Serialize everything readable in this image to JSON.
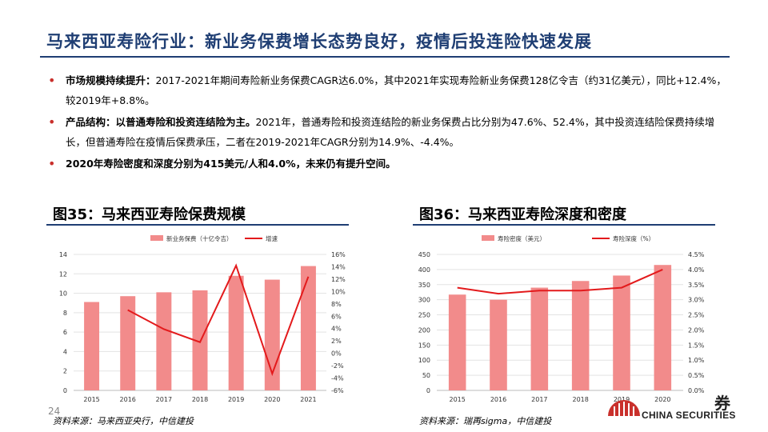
{
  "header": {
    "title": "马来西亚寿险行业：新业务保费增长态势良好，疫情后投连险快速发展"
  },
  "bullets": [
    {
      "bold": "市场规模持续提升：",
      "text": "2017-2021年期间寿险新业务保费CAGR达6.0%，其中2021年实现寿险新业务保费128亿令吉（约31亿美元），同比+12.4%，较2019年+8.8%。"
    },
    {
      "bold": "产品结构：以普通寿险和投资连结险为主。",
      "text": "2021年，普通寿险和投资连结险的新业务保费占比分别为47.6%、52.4%，其中投资连结险保费持续增长，但普通寿险在疫情后保费承压，二者在2019-2021年CAGR分别为14.9%、-4.4%。"
    },
    {
      "bold": "2020年寿险密度和深度分别为415美元/人和4.0%，未来仍有提升空间。",
      "text": ""
    }
  ],
  "figures": {
    "left": {
      "title": "图35：马来西亚寿险保费规模",
      "source": "资料来源：马来西亚央行，中信建投"
    },
    "right": {
      "title": "图36：马来西亚寿险深度和密度",
      "source": "资料来源：瑞再sigma，中信建投"
    }
  },
  "page_number": "24",
  "logo": {
    "text": "CHINA SECURITIES",
    "cn_fragment": "券"
  },
  "colors": {
    "bar": "#f28b8b",
    "line": "#e31a1c",
    "title": "#1f3e73",
    "bullet": "#c9302c"
  },
  "chart_data": [
    {
      "type": "bar",
      "categories": [
        "2015",
        "2016",
        "2017",
        "2018",
        "2019",
        "2020",
        "2021"
      ],
      "series": [
        {
          "name": "新业务保费（十亿令吉）",
          "type": "bar",
          "axis": "left",
          "values": [
            9.1,
            9.7,
            10.1,
            10.3,
            11.8,
            11.4,
            12.8
          ]
        },
        {
          "name": "增速",
          "type": "line",
          "axis": "right",
          "values": [
            null,
            7.0,
            3.9,
            1.8,
            14.2,
            -3.3,
            12.4
          ]
        }
      ],
      "ylim": [
        0,
        14
      ],
      "yticks": [
        0,
        2,
        4,
        6,
        8,
        10,
        12,
        14
      ],
      "y2lim": [
        -6,
        16
      ],
      "y2ticks": [
        "-6%",
        "-4%",
        "-2%",
        "0%",
        "2%",
        "4%",
        "6%",
        "8%",
        "10%",
        "12%",
        "14%",
        "16%"
      ],
      "legend": "top",
      "grid": true
    },
    {
      "type": "bar",
      "categories": [
        "2015",
        "2016",
        "2017",
        "2018",
        "2019",
        "2020"
      ],
      "series": [
        {
          "name": "寿险密度（美元）",
          "type": "bar",
          "axis": "left",
          "values": [
            317,
            300,
            340,
            362,
            380,
            415
          ]
        },
        {
          "name": "寿险深度（%）",
          "type": "line",
          "axis": "right",
          "values": [
            3.4,
            3.2,
            3.3,
            3.3,
            3.4,
            4.0
          ]
        }
      ],
      "ylim": [
        0,
        450
      ],
      "yticks": [
        0,
        50,
        100,
        150,
        200,
        250,
        300,
        350,
        400,
        450
      ],
      "y2lim": [
        0,
        4.5
      ],
      "y2ticks": [
        "0.0%",
        "0.5%",
        "1.0%",
        "1.5%",
        "2.0%",
        "2.5%",
        "3.0%",
        "3.5%",
        "4.0%",
        "4.5%"
      ],
      "legend": "top",
      "grid": true
    }
  ]
}
